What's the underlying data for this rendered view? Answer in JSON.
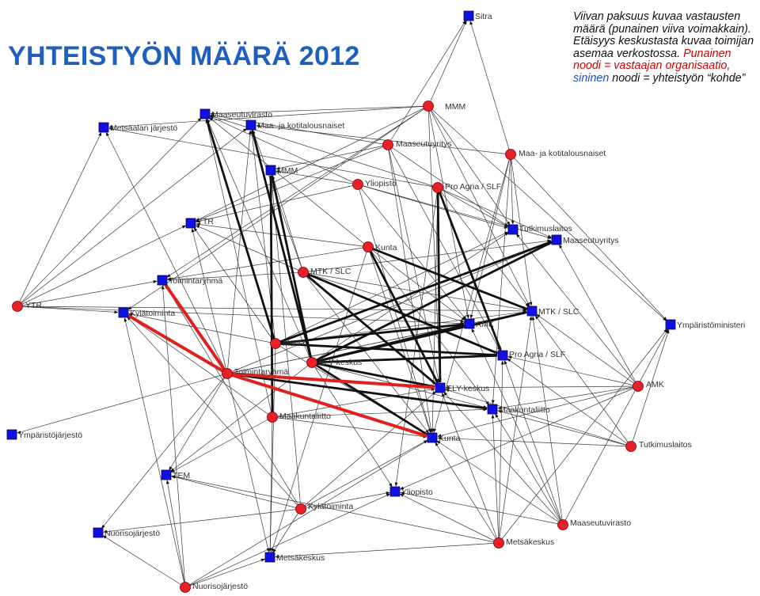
{
  "title": "YHTEISTYÖN MÄÄRÄ 2012",
  "legend": {
    "part1": "Viivan paksuus kuvaa vastausten määrä (punainen viiva voimakkain). Etäisyys keskustasta kuvaa toimijan asemaa verkostossa. ",
    "red_node": "Punainen noodi = vastaajan organisaatio,",
    "space": " ",
    "blue_node": "sininen",
    "part2": " noodi = yhteistyön “kohde”"
  },
  "colors": {
    "title": "#1f5fbf",
    "respondent_node": "#e8202a",
    "target_node": "#1010e0",
    "edge": "#222222",
    "strong_edge": "#e0201c"
  },
  "network": {
    "respondents": [
      {
        "id": "r_mmm",
        "label": "MMM"
      },
      {
        "id": "r_maaseutuyritys",
        "label": "Maaseutuyritys"
      },
      {
        "id": "r_maa_kotitalous",
        "label": "Maa- ja kotitalousnaiset"
      },
      {
        "id": "r_yliopisto",
        "label": "Yliopisto"
      },
      {
        "id": "r_proagria",
        "label": "Pro Agria / SLF"
      },
      {
        "id": "r_kunta",
        "label": "Kunta"
      },
      {
        "id": "r_mtk",
        "label": "MTK / SLC"
      },
      {
        "id": "r_ytr",
        "label": "YTR"
      },
      {
        "id": "r_muut",
        "label": "Muut"
      },
      {
        "id": "r_ely",
        "label": "ELY-keskus"
      },
      {
        "id": "r_toimintaryhma",
        "label": "Toimintaryhmä"
      },
      {
        "id": "r_maakuntaliitto",
        "label": "Maakuntaliitto"
      },
      {
        "id": "r_amk",
        "label": "AMK"
      },
      {
        "id": "r_tutkimuslaitos",
        "label": "Tutkimuslaitos"
      },
      {
        "id": "r_kylatoiminta",
        "label": "Kylätoiminta"
      },
      {
        "id": "r_maaseutuvirasto",
        "label": "Maaseutuvirasto"
      },
      {
        "id": "r_metsakeskus",
        "label": "Metsäkeskus"
      },
      {
        "id": "r_nuorisojarjesto",
        "label": "Nuorisojärjestö"
      }
    ],
    "targets": [
      {
        "id": "t_sitra",
        "label": "Sitra"
      },
      {
        "id": "t_maaseutuvirasto",
        "label": "Maaseutuvirasto"
      },
      {
        "id": "t_metsaalan",
        "label": "Metsäalan järjestö"
      },
      {
        "id": "t_maa_kotitalous",
        "label": "Maa- ja kotitalousnaiset"
      },
      {
        "id": "t_mmm",
        "label": "MMM"
      },
      {
        "id": "t_ytr",
        "label": "YTR"
      },
      {
        "id": "t_tutkimuslaitos",
        "label": "Tutkimuslaitos"
      },
      {
        "id": "t_maaseutuyritys",
        "label": "Maaseutuyritys"
      },
      {
        "id": "t_toimintaryhma",
        "label": "Toimintaryhmä"
      },
      {
        "id": "t_kylatoiminta",
        "label": "Kylätoiminta"
      },
      {
        "id": "t_mtk",
        "label": "MTK / SLC"
      },
      {
        "id": "t_amk",
        "label": "AMK"
      },
      {
        "id": "t_ymparistoministeri",
        "label": "Ympäristöministeri"
      },
      {
        "id": "t_proagria",
        "label": "Pro Agria / SLF"
      },
      {
        "id": "t_ely",
        "label": "ELY-keskus"
      },
      {
        "id": "t_maakuntaliitto",
        "label": "Maakuntaliitto"
      },
      {
        "id": "t_kunta",
        "label": "Kunta"
      },
      {
        "id": "t_ymparistojarjesto",
        "label": "Ympäristöjärjestö"
      },
      {
        "id": "t_tem",
        "label": "TEM"
      },
      {
        "id": "t_yliopisto",
        "label": "Yliopisto"
      },
      {
        "id": "t_nuorisojarjesto",
        "label": "Nuorisojärjestö"
      },
      {
        "id": "t_metsakeskus",
        "label": "Metsäkeskus"
      }
    ],
    "strong_edges": [
      [
        "r_toimintaryhma",
        "t_kylatoiminta"
      ],
      [
        "r_toimintaryhma",
        "t_toimintaryhma"
      ],
      [
        "r_toimintaryhma",
        "t_ely"
      ],
      [
        "r_toimintaryhma",
        "t_kunta"
      ]
    ],
    "thick_edges": [
      [
        "r_muut",
        "t_maaseutuvirasto"
      ],
      [
        "r_muut",
        "t_maaseutuyritys"
      ],
      [
        "r_ely",
        "t_mmm"
      ],
      [
        "r_ely",
        "t_maa_kotitalous"
      ],
      [
        "r_ely",
        "t_maaseutuyritys"
      ],
      [
        "r_ely",
        "t_kunta"
      ],
      [
        "r_ely",
        "t_mtk"
      ],
      [
        "r_ely",
        "t_amk"
      ],
      [
        "r_ely",
        "t_proagria"
      ],
      [
        "r_kunta",
        "t_ely"
      ],
      [
        "r_mtk",
        "t_ely"
      ],
      [
        "r_mtk",
        "t_proagria"
      ],
      [
        "r_muut",
        "t_proagria"
      ],
      [
        "r_muut",
        "t_amk"
      ],
      [
        "r_proagria",
        "t_ely"
      ],
      [
        "r_ely",
        "t_ely"
      ],
      [
        "r_kunta",
        "t_mtk"
      ],
      [
        "r_maakuntaliitto",
        "t_mmm"
      ],
      [
        "r_proagria",
        "t_proagria"
      ],
      [
        "r_toimintaryhma",
        "t_maakuntaliitto"
      ]
    ],
    "thin_edges": [
      [
        "r_mmm",
        "t_sitra"
      ],
      [
        "r_mmm",
        "t_maaseutuvirasto"
      ],
      [
        "r_mmm",
        "t_metsaalan"
      ],
      [
        "r_mmm",
        "t_ytr"
      ],
      [
        "r_mmm",
        "t_tutkimuslaitos"
      ],
      [
        "r_mmm",
        "t_amk"
      ],
      [
        "r_mmm",
        "t_toimintaryhma"
      ],
      [
        "r_mmm",
        "t_mtk"
      ],
      [
        "r_mmm",
        "t_ymparistoministeri"
      ],
      [
        "r_mmm",
        "t_ely"
      ],
      [
        "r_mmm",
        "t_kylatoiminta"
      ],
      [
        "r_maaseutuyritys",
        "t_maaseutuvirasto"
      ],
      [
        "r_maaseutuyritys",
        "t_mmm"
      ],
      [
        "r_maaseutuyritys",
        "t_tutkimuslaitos"
      ],
      [
        "r_maaseutuyritys",
        "t_proagria"
      ],
      [
        "r_maaseutuyritys",
        "t_ytr"
      ],
      [
        "r_maaseutuyritys",
        "t_ely"
      ],
      [
        "r_maaseutuyritys",
        "t_kunta"
      ],
      [
        "r_maaseutuyritys",
        "t_sitra"
      ],
      [
        "r_maa_kotitalous",
        "t_sitra"
      ],
      [
        "r_maa_kotitalous",
        "t_maa_kotitalous"
      ],
      [
        "r_maa_kotitalous",
        "t_tutkimuslaitos"
      ],
      [
        "r_maa_kotitalous",
        "t_mtk"
      ],
      [
        "r_maa_kotitalous",
        "t_maakuntaliitto"
      ],
      [
        "r_maa_kotitalous",
        "t_kunta"
      ],
      [
        "r_maa_kotitalous",
        "t_ymparistoministeri"
      ],
      [
        "r_maa_kotitalous",
        "t_amk"
      ],
      [
        "r_yliopisto",
        "t_mmm"
      ],
      [
        "r_yliopisto",
        "t_tutkimuslaitos"
      ],
      [
        "r_yliopisto",
        "t_maaseutuyritys"
      ],
      [
        "r_yliopisto",
        "t_amk"
      ],
      [
        "r_yliopisto",
        "t_kunta"
      ],
      [
        "r_yliopisto",
        "t_maaseutuvirasto"
      ],
      [
        "r_yliopisto",
        "t_ytr"
      ],
      [
        "r_proagria",
        "t_maaseutuvirasto"
      ],
      [
        "r_proagria",
        "t_tutkimuslaitos"
      ],
      [
        "r_proagria",
        "t_maaseutuyritys"
      ],
      [
        "r_proagria",
        "t_kunta"
      ],
      [
        "r_proagria",
        "t_metsaalan"
      ],
      [
        "r_proagria",
        "t_yliopisto"
      ],
      [
        "r_proagria",
        "t_mtk"
      ],
      [
        "r_kunta",
        "t_ytr"
      ],
      [
        "r_kunta",
        "t_toimintaryhma"
      ],
      [
        "r_kunta",
        "t_amk"
      ],
      [
        "r_kunta",
        "t_maakuntaliitto"
      ],
      [
        "r_kunta",
        "t_maaseutuvirasto"
      ],
      [
        "r_kunta",
        "t_kunta"
      ],
      [
        "r_kunta",
        "t_metsakeskus"
      ],
      [
        "r_mtk",
        "t_ytr"
      ],
      [
        "r_mtk",
        "t_mmm"
      ],
      [
        "r_mtk",
        "t_maa_kotitalous"
      ],
      [
        "r_mtk",
        "t_mtk"
      ],
      [
        "r_mtk",
        "t_amk"
      ],
      [
        "r_mtk",
        "t_maaseutuyritys"
      ],
      [
        "r_mtk",
        "t_toimintaryhma"
      ],
      [
        "r_mtk",
        "t_kunta"
      ],
      [
        "r_ytr",
        "t_metsaalan"
      ],
      [
        "r_ytr",
        "t_maaseutuvirasto"
      ],
      [
        "r_ytr",
        "t_ytr"
      ],
      [
        "r_ytr",
        "t_toimintaryhma"
      ],
      [
        "r_ytr",
        "t_kylatoiminta"
      ],
      [
        "r_ytr",
        "t_mtk"
      ],
      [
        "r_ytr",
        "t_amk"
      ],
      [
        "r_ytr",
        "t_maa_kotitalous"
      ],
      [
        "r_muut",
        "t_maa_kotitalous"
      ],
      [
        "r_muut",
        "t_ytr"
      ],
      [
        "r_muut",
        "t_kylatoiminta"
      ],
      [
        "r_muut",
        "t_kunta"
      ],
      [
        "r_muut",
        "t_tutkimuslaitos"
      ],
      [
        "r_muut",
        "t_mtk"
      ],
      [
        "r_muut",
        "t_metsakeskus"
      ],
      [
        "r_ely",
        "t_maaseutuvirasto"
      ],
      [
        "r_ely",
        "t_tutkimuslaitos"
      ],
      [
        "r_ely",
        "t_maakuntaliitto"
      ],
      [
        "r_ely",
        "t_yliopisto"
      ],
      [
        "r_ely",
        "t_tem"
      ],
      [
        "r_toimintaryhma",
        "t_metsaalan"
      ],
      [
        "r_toimintaryhma",
        "t_maa_kotitalous"
      ],
      [
        "r_toimintaryhma",
        "t_ytr"
      ],
      [
        "r_toimintaryhma",
        "t_maaseutuyritys"
      ],
      [
        "r_toimintaryhma",
        "t_ymparistojarjesto"
      ],
      [
        "r_toimintaryhma",
        "t_tem"
      ],
      [
        "r_toimintaryhma",
        "t_nuorisojarjesto"
      ],
      [
        "r_toimintaryhma",
        "t_metsakeskus"
      ],
      [
        "r_toimintaryhma",
        "t_mtk"
      ],
      [
        "r_toimintaryhma",
        "t_amk"
      ],
      [
        "r_maakuntaliitto",
        "t_maaseutuvirasto"
      ],
      [
        "r_maakuntaliitto",
        "t_kunta"
      ],
      [
        "r_maakuntaliitto",
        "t_ely"
      ],
      [
        "r_maakuntaliitto",
        "t_metsakeskus"
      ],
      [
        "r_maakuntaliitto",
        "t_kylatoiminta"
      ],
      [
        "r_maakuntaliitto",
        "t_tem"
      ],
      [
        "r_maakuntaliitto",
        "t_maakuntaliitto"
      ],
      [
        "r_amk",
        "t_maaseutuyritys"
      ],
      [
        "r_amk",
        "t_mtk"
      ],
      [
        "r_amk",
        "t_proagria"
      ],
      [
        "r_amk",
        "t_maakuntaliitto"
      ],
      [
        "r_amk",
        "t_kunta"
      ],
      [
        "r_amk",
        "t_yliopisto"
      ],
      [
        "r_amk",
        "t_tutkimuslaitos"
      ],
      [
        "r_amk",
        "t_ely"
      ],
      [
        "r_tutkimuslaitos",
        "t_mtk"
      ],
      [
        "r_tutkimuslaitos",
        "t_ymparistoministeri"
      ],
      [
        "r_tutkimuslaitos",
        "t_maakuntaliitto"
      ],
      [
        "r_tutkimuslaitos",
        "t_ely"
      ],
      [
        "r_tutkimuslaitos",
        "t_kunta"
      ],
      [
        "r_tutkimuslaitos",
        "t_proagria"
      ],
      [
        "r_kylatoiminta",
        "t_toimintaryhma"
      ],
      [
        "r_kylatoiminta",
        "t_kylatoiminta"
      ],
      [
        "r_kylatoiminta",
        "t_ely"
      ],
      [
        "r_kylatoiminta",
        "t_kunta"
      ],
      [
        "r_kylatoiminta",
        "t_metsakeskus"
      ],
      [
        "r_kylatoiminta",
        "t_tem"
      ],
      [
        "r_kylatoiminta",
        "t_nuorisojarjesto"
      ],
      [
        "r_kylatoiminta",
        "t_yliopisto"
      ],
      [
        "r_kylatoiminta",
        "t_mmm"
      ],
      [
        "r_maaseutuvirasto",
        "t_ymparistoministeri"
      ],
      [
        "r_maaseutuvirasto",
        "t_amk"
      ],
      [
        "r_maaseutuvirasto",
        "t_ely"
      ],
      [
        "r_maaseutuvirasto",
        "t_maakuntaliitto"
      ],
      [
        "r_maaseutuvirasto",
        "t_kunta"
      ],
      [
        "r_maaseutuvirasto",
        "t_proagria"
      ],
      [
        "r_maaseutuvirasto",
        "t_mtk"
      ],
      [
        "r_maaseutuvirasto",
        "t_yliopisto"
      ],
      [
        "r_metsakeskus",
        "t_kunta"
      ],
      [
        "r_metsakeskus",
        "t_ely"
      ],
      [
        "r_metsakeskus",
        "t_proagria"
      ],
      [
        "r_metsakeskus",
        "t_maakuntaliitto"
      ],
      [
        "r_metsakeskus",
        "t_yliopisto"
      ],
      [
        "r_metsakeskus",
        "t_metsakeskus"
      ],
      [
        "r_metsakeskus",
        "t_ymparistoministeri"
      ],
      [
        "r_metsakeskus",
        "t_tem"
      ],
      [
        "r_metsakeskus",
        "t_mtk"
      ],
      [
        "r_nuorisojarjesto",
        "t_nuorisojarjesto"
      ],
      [
        "r_nuorisojarjesto",
        "t_metsakeskus"
      ],
      [
        "r_nuorisojarjesto",
        "t_tem"
      ],
      [
        "r_nuorisojarjesto",
        "t_kunta"
      ],
      [
        "r_nuorisojarjesto",
        "t_yliopisto"
      ],
      [
        "r_nuorisojarjesto",
        "t_kylatoiminta"
      ],
      [
        "r_nuorisojarjesto",
        "t_toimintaryhma"
      ]
    ]
  }
}
